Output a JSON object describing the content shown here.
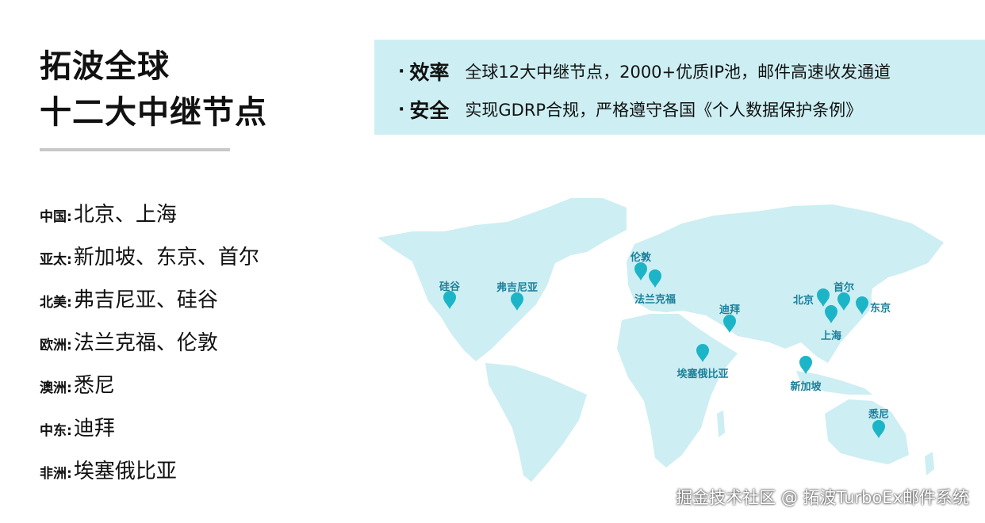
{
  "title": {
    "line1": "拓波全球",
    "line2": "十二大中继节点"
  },
  "regions": [
    {
      "name": "中国:",
      "cities": "北京、上海"
    },
    {
      "name": "亚太:",
      "cities": "新加坡、东京、首尔"
    },
    {
      "name": "北美:",
      "cities": "弗吉尼亚、硅谷"
    },
    {
      "name": "欧洲:",
      "cities": "法兰克福、伦敦"
    },
    {
      "name": "澳洲:",
      "cities": "悉尼"
    },
    {
      "name": "中东:",
      "cities": "迪拜"
    },
    {
      "name": "非洲:",
      "cities": "埃塞俄比亚"
    }
  ],
  "features": [
    {
      "bullet": "·",
      "label": "效率",
      "text": "全球12大中继节点，2000+优质IP池，邮件高速收发通道"
    },
    {
      "bullet": "·",
      "label": "安全",
      "text": "实现GDRP合规，严格遵守各国《个人数据保护条例》"
    }
  ],
  "map": {
    "land_color": "#cdeef3",
    "pin_color": "#1cb5c8",
    "label_color": "#1a7f9a",
    "pins": [
      {
        "name": "硅谷"
      },
      {
        "name": "弗吉尼亚"
      },
      {
        "name": "伦敦"
      },
      {
        "name": "法兰克福"
      },
      {
        "name": "迪拜"
      },
      {
        "name": "埃塞俄比亚"
      },
      {
        "name": "北京"
      },
      {
        "name": "首尔"
      },
      {
        "name": "东京"
      },
      {
        "name": "上海"
      },
      {
        "name": "新加坡"
      },
      {
        "name": "悉尼"
      }
    ]
  },
  "watermark": "掘金技术社区 @ 拓波TurboEx邮件系统"
}
